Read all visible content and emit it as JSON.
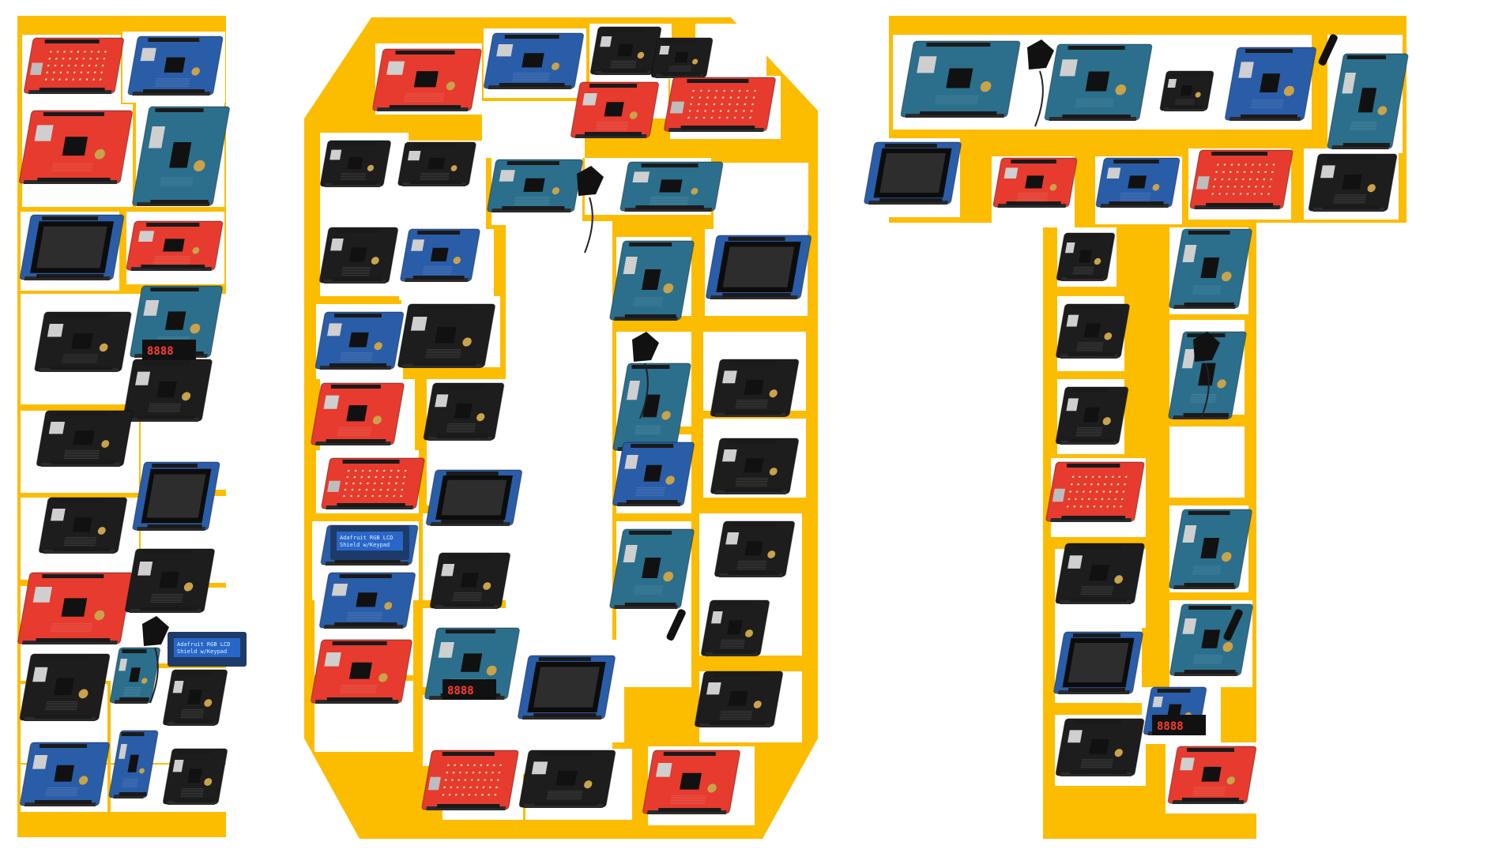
{
  "colors": {
    "background": "#ffffff",
    "letter_fill": "#fcbc00",
    "board_red": "#e63b2e",
    "board_blue": "#2a5da8",
    "board_black": "#1d1d1d",
    "board_teal": "#2b6f8c",
    "chip": "#111111",
    "header": "#1a1a1a",
    "pcb_copper": "#c9a24a"
  },
  "lcd_text": [
    "Adafruit RGB LCD",
    "Shield w/Keypad"
  ],
  "seven_segment_text": "8888"
}
